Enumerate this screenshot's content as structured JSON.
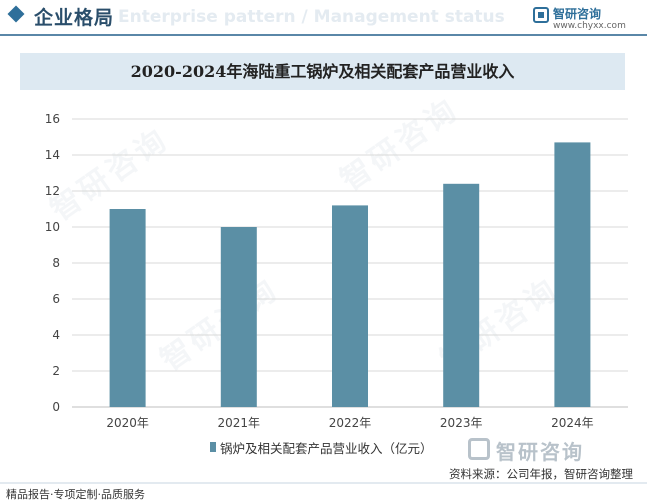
{
  "header": {
    "title": "企业格局",
    "ghost_subtitle": "Enterprise pattern / Management status"
  },
  "brand": {
    "name": "智研咨询",
    "url": "www.chyxx.com"
  },
  "chart_data": {
    "type": "bar",
    "title": "2020-2024年海陆重工锅炉及相关配套产品营业收入",
    "categories": [
      "2020年",
      "2021年",
      "2022年",
      "2023年",
      "2024年"
    ],
    "series": [
      {
        "name": "锅炉及相关配套产品营业收入（亿元）",
        "values": [
          11.0,
          10.0,
          11.2,
          12.4,
          14.7
        ]
      }
    ],
    "ylim": [
      0,
      16
    ],
    "yticks": [
      0,
      2,
      4,
      6,
      8,
      10,
      12,
      14,
      16
    ],
    "xlabel": "",
    "ylabel": "",
    "grid": true,
    "legend_position": "bottom",
    "colors": {
      "bar": "#5b8fa5",
      "grid": "#d9d9d9"
    }
  },
  "watermark": {
    "text": "智研咨询"
  },
  "footer": {
    "brand_name": "智研咨询",
    "source": "资料来源：公司年报，智研咨询整理",
    "left_text": "精品报告·专项定制·品质服务"
  },
  "colors": {
    "accent": "#2e6f9a",
    "title_band": "#dde9f2"
  }
}
